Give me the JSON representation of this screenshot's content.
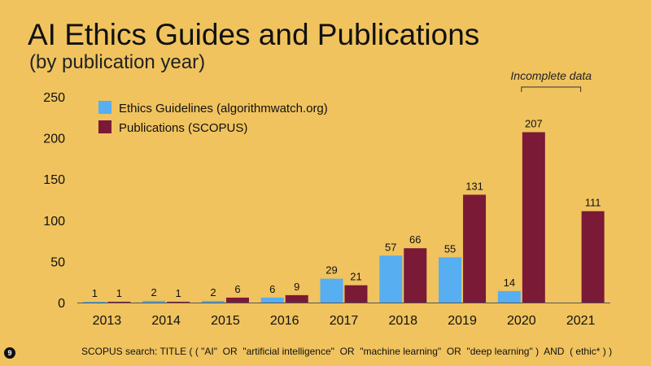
{
  "title": "AI Ethics Guides and Publications",
  "subtitle": "(by publication year)",
  "slide_number": "9",
  "footnote": "SCOPUS search: TITLE ( ( \"AI\"  OR  \"artificial intelligence\"  OR  \"machine learning\"  OR  \"deep learning\" )  AND  ( ethic* ) )",
  "annotation": "Incomplete data",
  "colors": {
    "background": "#f0c35e",
    "guidelines": "#57aef0",
    "publications": "#7a1a36"
  },
  "chart_data": {
    "type": "bar",
    "categories": [
      "2013",
      "2014",
      "2015",
      "2016",
      "2017",
      "2018",
      "2019",
      "2020",
      "2021"
    ],
    "series": [
      {
        "name": "Ethics Guidelines (algorithmwatch.org)",
        "values": [
          1,
          2,
          2,
          6,
          29,
          57,
          55,
          14,
          null
        ]
      },
      {
        "name": "Publications (SCOPUS)",
        "values": [
          1,
          1,
          6,
          9,
          21,
          66,
          131,
          207,
          111
        ]
      }
    ],
    "yticks": [
      0,
      50,
      100,
      150,
      200,
      250
    ],
    "ylim": [
      0,
      250
    ],
    "legend_position": "top-left",
    "grid": false,
    "annotation_range": [
      "2020",
      "2021"
    ]
  }
}
